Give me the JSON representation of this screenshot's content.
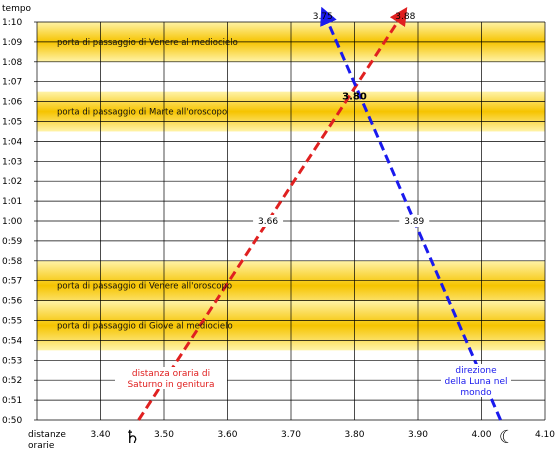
{
  "chart_data": {
    "type": "line",
    "ylabel": "tempo",
    "xlabel": "distanze orarie",
    "x_ticks": [
      "3.40",
      "3.50",
      "3.60",
      "3.70",
      "3.80",
      "3.90",
      "4.00",
      "4.10"
    ],
    "y_ticks": [
      "1:10",
      "1:09",
      "1:08",
      "1:07",
      "1:06",
      "1:05",
      "1:04",
      "1:03",
      "1:02",
      "1:01",
      "1:00",
      "0:59",
      "0:58",
      "0:57",
      "0:56",
      "0:55",
      "0:54",
      "0:53",
      "0:52",
      "0:51",
      "0:50"
    ],
    "xlim": [
      3.3,
      4.1
    ],
    "ylim_minutes": [
      50,
      70
    ],
    "grid": true,
    "bands": [
      {
        "label": "porta di passaggio di Venere al mediocielo",
        "y_from": 68,
        "y_to": 70
      },
      {
        "label": "porta di passaggio di Marte all'oroscopo",
        "y_from": 64.5,
        "y_to": 66.5
      },
      {
        "label": "porta di passaggio di Venere all'oroscopo",
        "y_from": 55.5,
        "y_to": 58
      },
      {
        "label": "porta di passaggio di Giove al mediocielo",
        "y_from": 53.5,
        "y_to": 56
      }
    ],
    "series": [
      {
        "color": "#e02020",
        "arrow_label": "3.88",
        "mid_label": "3.66",
        "points": [
          [
            3.46,
            50
          ],
          [
            3.88,
            70.6
          ]
        ],
        "annotation": [
          "distanza oraria di",
          "Saturno in genitura"
        ],
        "symbol": "♄",
        "symbol_value": 3.45
      },
      {
        "color": "#1a1aee",
        "arrow_label": "3.75",
        "mid_label": "3.89",
        "points": [
          [
            4.03,
            50
          ],
          [
            3.75,
            70.6
          ]
        ],
        "annotation": [
          "direzione",
          "della Luna nel",
          "mondo"
        ],
        "symbol": "☾",
        "symbol_value": 4.04
      }
    ],
    "intersection": {
      "label": "3.80",
      "x": 3.8,
      "y": 66
    }
  }
}
